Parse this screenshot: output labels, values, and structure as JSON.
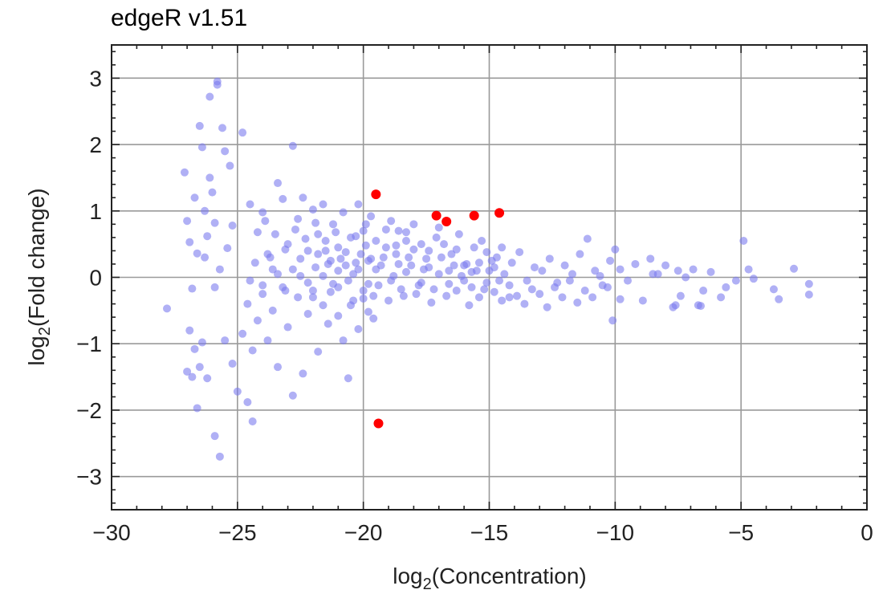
{
  "title": "edgeR v1.51",
  "chart_data": {
    "type": "scatter",
    "xlabel": "log2(Concentration)",
    "ylabel": "log2(Fold change)",
    "xlim": [
      -30,
      0
    ],
    "ylim": [
      -3.5,
      3.5
    ],
    "x_ticks": [
      -30,
      -25,
      -20,
      -15,
      -10,
      -5,
      0
    ],
    "y_ticks": [
      -3,
      -2,
      -1,
      0,
      1,
      2,
      3
    ],
    "x_tick_labels": [
      "−30",
      "−25",
      "−20",
      "−15",
      "−10",
      "−5",
      "0"
    ],
    "y_tick_labels": [
      "−3",
      "−2",
      "−1",
      "0",
      "1",
      "2",
      "3"
    ],
    "grid": true,
    "series": [
      {
        "color": "#7b7bee",
        "points": [
          [
            -27.8,
            -0.47
          ],
          [
            -27.1,
            1.58
          ],
          [
            -27.0,
            0.85
          ],
          [
            -26.9,
            0.53
          ],
          [
            -26.8,
            -0.17
          ],
          [
            -26.7,
            1.2
          ],
          [
            -26.6,
            0.36
          ],
          [
            -26.5,
            2.28
          ],
          [
            -26.4,
            1.96
          ],
          [
            -26.3,
            1.0
          ],
          [
            -26.2,
            0.62
          ],
          [
            -26.1,
            2.72
          ],
          [
            -26.0,
            1.28
          ],
          [
            -25.9,
            0.82
          ],
          [
            -25.8,
            2.9
          ],
          [
            -25.7,
            0.12
          ],
          [
            -25.6,
            2.25
          ],
          [
            -25.5,
            1.9
          ],
          [
            -25.4,
            0.44
          ],
          [
            -25.3,
            1.68
          ],
          [
            -25.2,
            0.78
          ],
          [
            -25.8,
            2.95
          ],
          [
            -26.1,
            1.5
          ],
          [
            -26.3,
            0.3
          ],
          [
            -25.9,
            -0.15
          ],
          [
            -27.0,
            -1.42
          ],
          [
            -26.7,
            -1.08
          ],
          [
            -26.4,
            -0.98
          ],
          [
            -26.6,
            -1.97
          ],
          [
            -26.2,
            -1.52
          ],
          [
            -25.9,
            -2.39
          ],
          [
            -25.7,
            -2.7
          ],
          [
            -25.2,
            -1.3
          ],
          [
            -25.0,
            -1.72
          ],
          [
            -24.6,
            -1.88
          ],
          [
            -24.4,
            -2.17
          ],
          [
            -26.9,
            -0.8
          ],
          [
            -26.5,
            -1.35
          ],
          [
            -25.5,
            -0.95
          ],
          [
            -26.8,
            -1.5
          ],
          [
            -24.8,
            2.18
          ],
          [
            -24.5,
            1.1
          ],
          [
            -24.2,
            0.68
          ],
          [
            -24.0,
            0.98
          ],
          [
            -23.8,
            0.35
          ],
          [
            -23.6,
            0.12
          ],
          [
            -23.4,
            1.42
          ],
          [
            -23.2,
            1.18
          ],
          [
            -23.0,
            0.5
          ],
          [
            -22.8,
            1.98
          ],
          [
            -22.6,
            0.88
          ],
          [
            -22.4,
            1.2
          ],
          [
            -22.2,
            0.4
          ],
          [
            -22.0,
            1.02
          ],
          [
            -21.8,
            0.65
          ],
          [
            -21.6,
            1.1
          ],
          [
            -21.4,
            0.2
          ],
          [
            -21.2,
            0.8
          ],
          [
            -21.0,
            0.45
          ],
          [
            -20.8,
            0.98
          ],
          [
            -20.5,
            0.6
          ],
          [
            -20.2,
            1.1
          ],
          [
            -20.0,
            0.7
          ],
          [
            -19.8,
            0.25
          ],
          [
            -19.7,
            0.92
          ],
          [
            -24.8,
            -0.85
          ],
          [
            -24.6,
            -0.4
          ],
          [
            -24.4,
            -1.1
          ],
          [
            -24.2,
            -0.65
          ],
          [
            -24.0,
            -0.25
          ],
          [
            -23.8,
            -0.95
          ],
          [
            -23.6,
            -0.5
          ],
          [
            -23.4,
            -1.35
          ],
          [
            -23.2,
            -0.15
          ],
          [
            -23.0,
            -0.75
          ],
          [
            -22.8,
            -1.78
          ],
          [
            -22.6,
            -0.3
          ],
          [
            -22.4,
            -1.45
          ],
          [
            -22.2,
            -0.55
          ],
          [
            -22.0,
            -0.2
          ],
          [
            -21.8,
            -1.12
          ],
          [
            -21.6,
            -0.42
          ],
          [
            -21.4,
            -0.7
          ],
          [
            -21.2,
            -0.1
          ],
          [
            -21.0,
            -0.58
          ],
          [
            -20.8,
            -0.95
          ],
          [
            -20.6,
            -1.52
          ],
          [
            -20.4,
            -0.35
          ],
          [
            -20.2,
            -0.78
          ],
          [
            -20.0,
            -0.2
          ],
          [
            -19.8,
            -0.52
          ],
          [
            -19.6,
            -0.62
          ],
          [
            -24.5,
            -0.05
          ],
          [
            -24.3,
            0.22
          ],
          [
            -24.0,
            -0.12
          ],
          [
            -23.7,
            0.3
          ],
          [
            -23.4,
            0.05
          ],
          [
            -23.1,
            -0.2
          ],
          [
            -22.8,
            0.12
          ],
          [
            -22.5,
            0.28
          ],
          [
            -22.2,
            -0.08
          ],
          [
            -21.9,
            0.15
          ],
          [
            -21.6,
            0.02
          ],
          [
            -21.3,
            0.25
          ],
          [
            -21.0,
            -0.15
          ],
          [
            -20.7,
            0.18
          ],
          [
            -20.4,
            0.05
          ],
          [
            -20.1,
            0.35
          ],
          [
            -19.8,
            -0.1
          ],
          [
            -19.5,
            0.12
          ],
          [
            -19.2,
            0.3
          ],
          [
            -18.9,
            -0.05
          ],
          [
            -18.6,
            0.2
          ],
          [
            -18.3,
            0.08
          ],
          [
            -18.0,
            0.42
          ],
          [
            -17.7,
            -0.08
          ],
          [
            -17.4,
            0.15
          ],
          [
            -17.1,
            0.6
          ],
          [
            -17.0,
            0.75
          ],
          [
            -16.8,
            0.5
          ],
          [
            -16.5,
            0.35
          ],
          [
            -16.2,
            0.65
          ],
          [
            -15.9,
            0.2
          ],
          [
            -15.6,
            0.45
          ],
          [
            -15.3,
            0.55
          ],
          [
            -15.0,
            0.1
          ],
          [
            -14.7,
            0.3
          ],
          [
            -14.4,
            0.05
          ],
          [
            -14.1,
            0.22
          ],
          [
            -13.8,
            0.38
          ],
          [
            -13.5,
            -0.05
          ],
          [
            -13.2,
            0.15
          ],
          [
            -12.9,
            0.1
          ],
          [
            -12.6,
            0.28
          ],
          [
            -12.3,
            -0.08
          ],
          [
            -12.0,
            0.18
          ],
          [
            -11.7,
            0.05
          ],
          [
            -11.4,
            0.35
          ],
          [
            -11.1,
            0.58
          ],
          [
            -10.8,
            0.1
          ],
          [
            -10.5,
            -0.12
          ],
          [
            -10.2,
            0.25
          ],
          [
            -18.9,
            0.85
          ],
          [
            -18.6,
            0.7
          ],
          [
            -18.3,
            0.55
          ],
          [
            -18.0,
            0.8
          ],
          [
            -17.7,
            0.5
          ],
          [
            -17.4,
            0.4
          ],
          [
            -16.6,
            -0.1
          ],
          [
            -16.3,
            -0.2
          ],
          [
            -16.0,
            -0.05
          ],
          [
            -15.7,
            -0.15
          ],
          [
            -15.4,
            -0.3
          ],
          [
            -15.1,
            -0.08
          ],
          [
            -14.8,
            -0.22
          ],
          [
            -14.5,
            -0.35
          ],
          [
            -14.2,
            -0.12
          ],
          [
            -13.9,
            -0.28
          ],
          [
            -13.6,
            -0.4
          ],
          [
            -13.3,
            -0.18
          ],
          [
            -13.0,
            -0.25
          ],
          [
            -12.7,
            -0.45
          ],
          [
            -12.4,
            -0.15
          ],
          [
            -12.1,
            -0.3
          ],
          [
            -11.8,
            -0.05
          ],
          [
            -11.5,
            -0.38
          ],
          [
            -11.2,
            -0.2
          ],
          [
            -10.9,
            -0.3
          ],
          [
            -10.6,
            0.02
          ],
          [
            -10.3,
            -0.15
          ],
          [
            -10.1,
            -0.65
          ],
          [
            -10.0,
            0.42
          ],
          [
            -9.8,
            0.12
          ],
          [
            -9.5,
            -0.05
          ],
          [
            -9.2,
            0.2
          ],
          [
            -8.9,
            -0.35
          ],
          [
            -8.6,
            0.28
          ],
          [
            -8.3,
            0.05
          ],
          [
            -8.0,
            0.18
          ],
          [
            -7.7,
            -0.45
          ],
          [
            -7.5,
            0.1
          ],
          [
            -7.4,
            -0.28
          ],
          [
            -7.2,
            0.0
          ],
          [
            -6.9,
            0.12
          ],
          [
            -6.7,
            -0.42
          ],
          [
            -6.5,
            -0.2
          ],
          [
            -6.2,
            0.08
          ],
          [
            -5.8,
            -0.3
          ],
          [
            -5.6,
            -0.15
          ],
          [
            -5.2,
            -0.05
          ],
          [
            -4.9,
            0.55
          ],
          [
            -4.7,
            0.12
          ],
          [
            -4.5,
            -0.02
          ],
          [
            -3.7,
            -0.18
          ],
          [
            -3.5,
            -0.33
          ],
          [
            -2.9,
            0.13
          ],
          [
            -2.3,
            -0.1
          ],
          [
            -2.3,
            -0.26
          ],
          [
            -6.6,
            -0.43
          ],
          [
            -7.6,
            -0.42
          ],
          [
            -9.8,
            -0.33
          ],
          [
            -8.5,
            0.05
          ],
          [
            -22.5,
            0.02
          ],
          [
            -22.0,
            -0.3
          ],
          [
            -21.5,
            0.4
          ],
          [
            -21.0,
            0.1
          ],
          [
            -20.6,
            -0.05
          ],
          [
            -20.3,
            0.22
          ],
          [
            -20.0,
            -0.32
          ],
          [
            -19.7,
            0.28
          ],
          [
            -19.4,
            -0.12
          ],
          [
            -19.1,
            0.45
          ],
          [
            -18.8,
            0.02
          ],
          [
            -18.5,
            -0.18
          ],
          [
            -18.2,
            0.3
          ],
          [
            -17.9,
            -0.25
          ],
          [
            -17.6,
            0.12
          ],
          [
            -17.3,
            -0.38
          ],
          [
            -17.0,
            0.05
          ],
          [
            -16.7,
            -0.28
          ],
          [
            -16.4,
            0.18
          ],
          [
            -16.1,
            0.02
          ],
          [
            -15.8,
            -0.42
          ],
          [
            -15.5,
            0.1
          ],
          [
            -15.2,
            -0.18
          ],
          [
            -14.9,
            0.25
          ],
          [
            -14.6,
            -0.05
          ],
          [
            -21.8,
            0.35
          ],
          [
            -21.3,
            -0.22
          ],
          [
            -20.9,
            0.28
          ],
          [
            -20.5,
            -0.42
          ],
          [
            -20.2,
            0.12
          ],
          [
            -19.9,
            0.48
          ],
          [
            -19.6,
            -0.28
          ],
          [
            -19.3,
            0.18
          ],
          [
            -19.0,
            -0.35
          ],
          [
            -18.7,
            0.35
          ],
          [
            -18.4,
            -0.28
          ],
          [
            -18.1,
            0.18
          ],
          [
            -17.8,
            -0.12
          ],
          [
            -17.5,
            0.28
          ],
          [
            -17.2,
            -0.18
          ],
          [
            -16.9,
            0.3
          ],
          [
            -16.6,
            0.1
          ],
          [
            -16.3,
            0.42
          ],
          [
            -16.0,
            0.18
          ],
          [
            -15.7,
            0.08
          ],
          [
            -15.4,
            0.22
          ],
          [
            -15.1,
            0.38
          ],
          [
            -14.8,
            0.15
          ],
          [
            -14.5,
            0.45
          ],
          [
            -14.2,
            -0.3
          ],
          [
            -23.9,
            0.85
          ],
          [
            -23.5,
            0.65
          ],
          [
            -23.1,
            0.42
          ],
          [
            -22.7,
            0.72
          ],
          [
            -22.3,
            0.58
          ],
          [
            -21.9,
            0.82
          ],
          [
            -21.5,
            0.55
          ],
          [
            -21.1,
            0.68
          ],
          [
            -20.7,
            0.38
          ],
          [
            -20.3,
            0.62
          ],
          [
            -19.9,
            0.8
          ],
          [
            -19.5,
            0.55
          ],
          [
            -19.1,
            0.72
          ],
          [
            -18.7,
            0.48
          ],
          [
            -18.3,
            0.68
          ]
        ]
      },
      {
        "color": "#ff0000",
        "points": [
          [
            -19.5,
            1.25
          ],
          [
            -17.1,
            0.93
          ],
          [
            -16.7,
            0.84
          ],
          [
            -15.6,
            0.93
          ],
          [
            -14.6,
            0.97
          ],
          [
            -19.4,
            -2.2
          ]
        ]
      }
    ]
  }
}
